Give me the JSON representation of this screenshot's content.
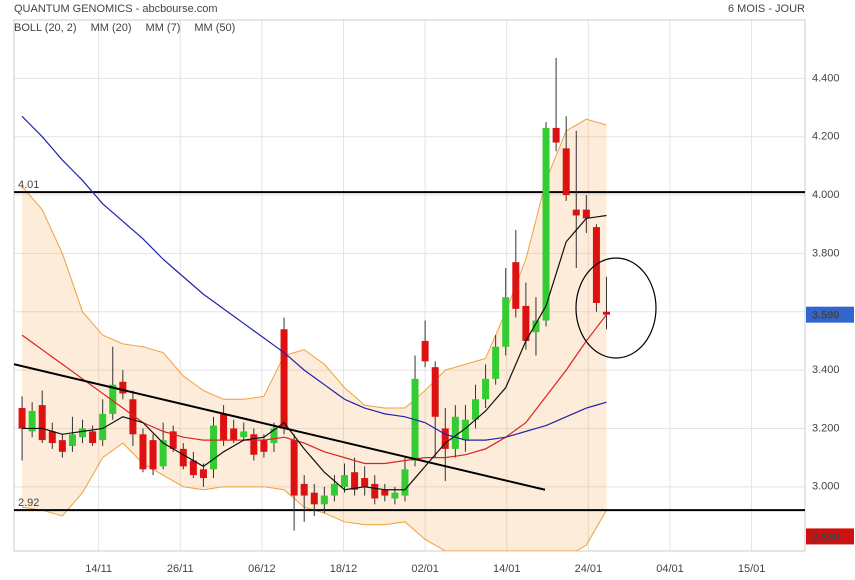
{
  "chart_data": {
    "type": "candlestick",
    "title": "QUANTUM GENOMICS - abcbourse.com",
    "subtitle": "6 MOIS - JOUR",
    "x": [
      0,
      1,
      2,
      3,
      4,
      5,
      6,
      7,
      8,
      9,
      10,
      11,
      12,
      13,
      14,
      15,
      16,
      17,
      18,
      19,
      20,
      21,
      22,
      23,
      24,
      25,
      26,
      27,
      28,
      29,
      30,
      31,
      32,
      33,
      34,
      35,
      36,
      37,
      38,
      39,
      40,
      41,
      42,
      43,
      44,
      45,
      46,
      47,
      48,
      49,
      50,
      51,
      52,
      53,
      54,
      55,
      56,
      57,
      58
    ],
    "open": [
      3.27,
      3.19,
      3.28,
      3.19,
      3.16,
      3.14,
      3.17,
      3.19,
      3.16,
      3.25,
      3.36,
      3.3,
      3.18,
      3.16,
      3.07,
      3.19,
      3.13,
      3.09,
      3.06,
      3.06,
      3.25,
      3.2,
      3.17,
      3.18,
      3.16,
      3.15,
      3.54,
      3.16,
      3.01,
      2.98,
      2.94,
      2.97,
      3.0,
      3.05,
      3.03,
      3.01,
      2.99,
      2.96,
      2.97,
      3.09,
      3.5,
      3.41,
      3.2,
      3.13,
      3.16,
      3.23,
      3.3,
      3.37,
      3.48,
      3.77,
      3.62,
      3.53,
      3.57,
      4.23,
      4.16,
      3.95,
      3.95,
      3.89,
      3.6
    ],
    "close": [
      3.2,
      3.26,
      3.16,
      3.15,
      3.12,
      3.18,
      3.2,
      3.15,
      3.25,
      3.35,
      3.32,
      3.18,
      3.06,
      3.06,
      3.16,
      3.13,
      3.07,
      3.04,
      3.03,
      3.21,
      3.16,
      3.16,
      3.19,
      3.11,
      3.12,
      3.2,
      3.2,
      2.97,
      2.97,
      2.94,
      2.97,
      3.01,
      3.04,
      2.99,
      3.0,
      2.96,
      2.97,
      2.98,
      3.06,
      3.37,
      3.43,
      3.24,
      3.13,
      3.24,
      3.23,
      3.3,
      3.37,
      3.48,
      3.65,
      3.61,
      3.5,
      3.57,
      4.23,
      4.18,
      4.0,
      3.93,
      3.92,
      3.63,
      3.59
    ],
    "high": [
      3.31,
      3.29,
      3.33,
      3.22,
      3.18,
      3.24,
      3.23,
      3.21,
      3.3,
      3.48,
      3.4,
      3.33,
      3.2,
      3.18,
      3.22,
      3.21,
      3.15,
      3.12,
      3.08,
      3.24,
      3.28,
      3.23,
      3.22,
      3.2,
      3.18,
      3.22,
      3.58,
      3.18,
      3.04,
      3.01,
      3.0,
      3.04,
      3.08,
      3.1,
      3.07,
      3.04,
      3.01,
      3.0,
      3.1,
      3.45,
      3.57,
      3.43,
      3.27,
      3.28,
      3.28,
      3.35,
      3.42,
      3.52,
      3.75,
      3.88,
      3.7,
      3.65,
      4.25,
      4.47,
      4.27,
      4.22,
      4.0,
      3.9,
      3.72
    ],
    "low": [
      3.09,
      3.17,
      3.15,
      3.13,
      3.1,
      3.12,
      3.15,
      3.14,
      3.14,
      3.23,
      3.3,
      3.14,
      3.05,
      3.04,
      3.06,
      3.12,
      3.06,
      3.03,
      3.0,
      3.03,
      3.14,
      3.15,
      3.16,
      3.09,
      3.1,
      3.12,
      3.18,
      2.85,
      2.88,
      2.9,
      2.91,
      2.95,
      2.98,
      2.97,
      2.97,
      2.94,
      2.95,
      2.94,
      2.95,
      3.07,
      3.41,
      3.1,
      3.02,
      3.1,
      3.12,
      3.2,
      3.27,
      3.35,
      3.45,
      3.58,
      3.47,
      3.45,
      3.55,
      4.15,
      3.98,
      3.75,
      3.87,
      3.6,
      3.54
    ],
    "up_color": "#33cc33",
    "down_color": "#dd1111",
    "series": [
      {
        "name": "BOLL (20, 2)",
        "color": "#f0a040",
        "upper": [
          4.03,
          3.99,
          3.95,
          3.875,
          3.8,
          3.7,
          3.6,
          3.56,
          3.52,
          3.505,
          3.49,
          3.485,
          3.48,
          3.47,
          3.46,
          3.42,
          3.38,
          3.355,
          3.33,
          3.315,
          3.3,
          3.3,
          3.3,
          3.305,
          3.31,
          3.38,
          3.45,
          3.46,
          3.47,
          3.445,
          3.42,
          3.38,
          3.34,
          3.31,
          3.28,
          3.275,
          3.27,
          3.27,
          3.27,
          3.3,
          3.33,
          3.365,
          3.4,
          3.41,
          3.42,
          3.43,
          3.44,
          3.52,
          3.6,
          3.69,
          3.78,
          3.915,
          4.05,
          4.135,
          4.22,
          4.24,
          4.26,
          4.25,
          4.24
        ],
        "lower": [
          2.93,
          2.925,
          2.92,
          2.91,
          2.9,
          2.94,
          2.98,
          3.04,
          3.1,
          3.125,
          3.15,
          3.115,
          3.08,
          3.06,
          3.04,
          3.02,
          3.0,
          2.995,
          2.99,
          2.995,
          3.0,
          3.0,
          3.0,
          3.0,
          3.0,
          2.995,
          2.99,
          2.96,
          2.93,
          2.92,
          2.91,
          2.895,
          2.88,
          2.875,
          2.87,
          2.87,
          2.87,
          2.875,
          2.88,
          2.85,
          2.82,
          2.8,
          2.78,
          2.78,
          2.78,
          2.78,
          2.78,
          2.78,
          2.78,
          2.78,
          2.78,
          2.78,
          2.78,
          2.78,
          2.78,
          2.78,
          2.8,
          2.86,
          2.92
        ]
      },
      {
        "name": "MM (20)",
        "color": "#dd2222",
        "values": [
          3.52,
          3.495,
          3.47,
          3.445,
          3.42,
          3.395,
          3.37,
          3.345,
          3.32,
          3.295,
          3.27,
          3.245,
          3.22,
          3.205,
          3.19,
          3.18,
          3.17,
          3.165,
          3.16,
          3.16,
          3.16,
          3.16,
          3.16,
          3.16,
          3.16,
          3.165,
          3.17,
          3.16,
          3.15,
          3.135,
          3.12,
          3.11,
          3.1,
          3.09,
          3.08,
          3.08,
          3.08,
          3.085,
          3.09,
          3.095,
          3.1,
          3.1,
          3.1,
          3.105,
          3.11,
          3.12,
          3.13,
          3.15,
          3.17,
          3.195,
          3.22,
          3.265,
          3.31,
          3.355,
          3.4,
          3.45,
          3.5,
          3.545,
          3.59
        ]
      },
      {
        "name": "MM (7)",
        "color": "#111111",
        "values": [
          3.2,
          3.2,
          3.2,
          3.19,
          3.18,
          3.185,
          3.19,
          3.195,
          3.2,
          3.22,
          3.24,
          3.23,
          3.22,
          3.185,
          3.15,
          3.13,
          3.11,
          3.09,
          3.07,
          3.095,
          3.12,
          3.14,
          3.16,
          3.165,
          3.17,
          3.195,
          3.22,
          3.175,
          3.13,
          3.09,
          3.05,
          3.02,
          2.99,
          2.995,
          3.0,
          2.995,
          2.99,
          2.99,
          2.99,
          3.03,
          3.07,
          3.11,
          3.15,
          3.175,
          3.2,
          3.23,
          3.26,
          3.3,
          3.34,
          3.42,
          3.5,
          3.56,
          3.62,
          3.73,
          3.84,
          3.88,
          3.92,
          3.925,
          3.93
        ]
      },
      {
        "name": "MM (50)",
        "color": "#2222aa",
        "values": [
          4.27,
          4.235,
          4.2,
          4.16,
          4.12,
          4.085,
          4.05,
          4.01,
          3.97,
          3.94,
          3.91,
          3.88,
          3.85,
          3.815,
          3.78,
          3.75,
          3.72,
          3.69,
          3.66,
          3.635,
          3.61,
          3.585,
          3.56,
          3.535,
          3.51,
          3.485,
          3.46,
          3.43,
          3.4,
          3.375,
          3.35,
          3.325,
          3.3,
          3.285,
          3.27,
          3.26,
          3.25,
          3.245,
          3.24,
          3.23,
          3.22,
          3.2,
          3.18,
          3.17,
          3.16,
          3.16,
          3.16,
          3.165,
          3.17,
          3.18,
          3.19,
          3.2,
          3.21,
          3.225,
          3.24,
          3.255,
          3.27,
          3.28,
          3.29
        ]
      }
    ],
    "xlim": [
      -0.8,
      77.7
    ],
    "xticks": [
      {
        "value": 7.6,
        "label": "14/11"
      },
      {
        "value": 15.7,
        "label": "26/11"
      },
      {
        "value": 23.8,
        "label": "06/12"
      },
      {
        "value": 31.9,
        "label": "18/12"
      },
      {
        "value": 40,
        "label": "02/01"
      },
      {
        "value": 48.1,
        "label": "14/01"
      },
      {
        "value": 56.2,
        "label": "24/01"
      },
      {
        "value": 64.3,
        "label": "04/01"
      },
      {
        "value": 72.4,
        "label": "15/01"
      }
    ],
    "ylim": [
      2.78,
      4.6
    ],
    "yticks": [
      {
        "value": 3,
        "label": "3.000"
      },
      {
        "value": 3.2,
        "label": "3.200"
      },
      {
        "value": 3.4,
        "label": "3.400"
      },
      {
        "value": 3.6,
        "label": "3.600"
      },
      {
        "value": 3.8,
        "label": "3.800"
      },
      {
        "value": 4,
        "label": "4.000"
      },
      {
        "value": 4.2,
        "label": "4.200"
      },
      {
        "value": 4.4,
        "label": "4.400"
      }
    ],
    "grid": true,
    "hlines": [
      4.01,
      2.92
    ],
    "trendline": {
      "x": [
        -0.8,
        51.9
      ],
      "y": [
        3.42,
        2.99
      ]
    },
    "price_labels": [
      {
        "value": 3.59,
        "label": "3.590",
        "color": "#3366cc"
      },
      {
        "value": 2.83,
        "label": "2.830",
        "color": "#cc1111"
      }
    ]
  }
}
